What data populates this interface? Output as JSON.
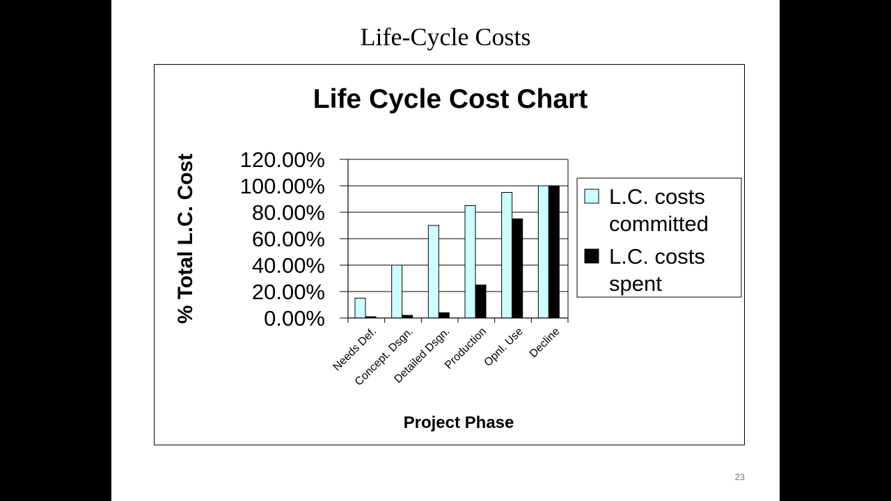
{
  "slide": {
    "title": "Life-Cycle Costs",
    "page_number": "23"
  },
  "chart_data": {
    "type": "bar",
    "title": "Life Cycle Cost Chart",
    "xlabel": "Project Phase",
    "ylabel": "% Total L.C. Cost",
    "categories": [
      "Needs Def.",
      "Concept. Dsgn.",
      "Detailed Dsgn.",
      "Production",
      "Opnl. Use",
      "Decline"
    ],
    "y_ticks": [
      "0.00%",
      "20.00%",
      "40.00%",
      "60.00%",
      "80.00%",
      "100.00%",
      "120.00%"
    ],
    "ylim": [
      0,
      120
    ],
    "grid": "horizontal",
    "legend_position": "right",
    "series": [
      {
        "name": "L.C. costs committed",
        "legend_lines": [
          "L.C. costs",
          "committed"
        ],
        "color": "#ccffff",
        "values": [
          15,
          40,
          70,
          85,
          95,
          100
        ]
      },
      {
        "name": "L.C. costs spent",
        "legend_lines": [
          "L.C. costs",
          "spent"
        ],
        "color": "#000000",
        "values": [
          1,
          2,
          4,
          25,
          75,
          100
        ]
      }
    ]
  }
}
